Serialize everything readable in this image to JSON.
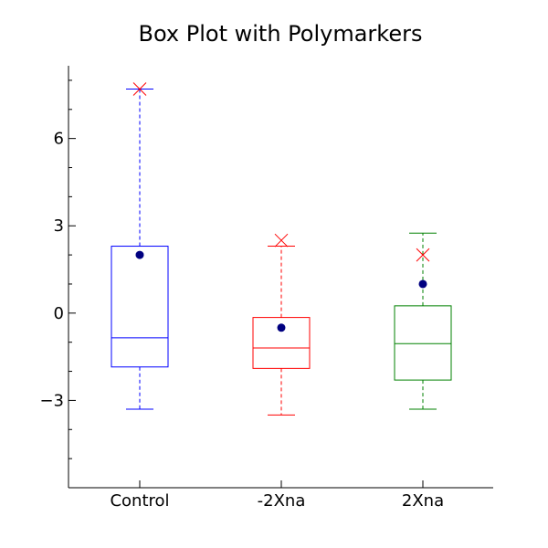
{
  "chart_data": {
    "type": "box",
    "title": "Box Plot with Polymarkers",
    "xlabel": "",
    "ylabel": "",
    "ylim": [
      -6,
      8.5
    ],
    "yticks_major": [
      -3,
      0,
      3,
      6
    ],
    "ytick_labels": [
      "−3",
      "0",
      "3",
      "6"
    ],
    "yticks_minor": [
      -5,
      -4,
      -2,
      -1,
      1,
      2,
      4,
      5,
      7,
      8
    ],
    "categories": [
      "Control",
      "-2Xna",
      "2Xna"
    ],
    "boxes": [
      {
        "name": "Control",
        "color": "#0000ff",
        "whisker_low": -3.3,
        "q1": -1.85,
        "median": -0.85,
        "q3": 2.3,
        "whisker_high": 7.7,
        "mean": 2.0,
        "outliers": [
          7.7
        ]
      },
      {
        "name": "-2Xna",
        "color": "#ff0000",
        "whisker_low": -3.5,
        "q1": -1.9,
        "median": -1.2,
        "q3": -0.15,
        "whisker_high": 2.3,
        "mean": -0.5,
        "outliers": [
          2.5
        ]
      },
      {
        "name": "2Xna",
        "color": "#008000",
        "whisker_low": -3.3,
        "q1": -2.3,
        "median": -1.05,
        "q3": 0.25,
        "whisker_high": 2.75,
        "mean": 1.0,
        "outliers": [
          2.0
        ]
      }
    ],
    "mean_marker": {
      "shape": "circle",
      "color": "#000080"
    },
    "outlier_marker": {
      "shape": "x",
      "color": "#ff0000"
    },
    "grid": false,
    "legend": "none"
  }
}
